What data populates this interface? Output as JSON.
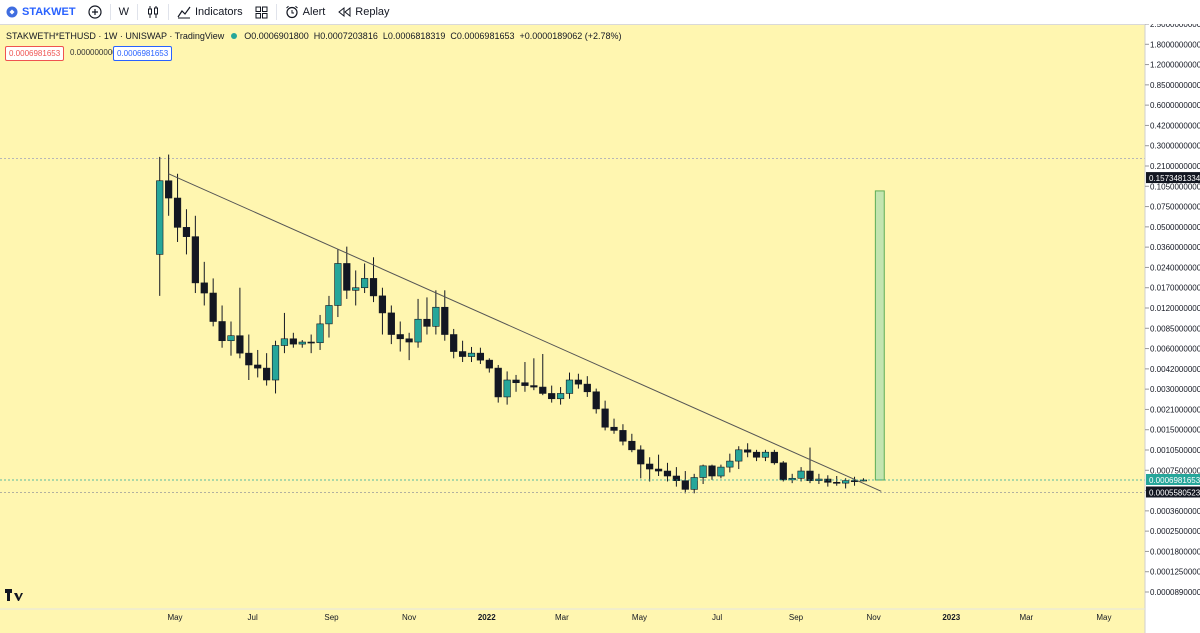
{
  "toolbar": {
    "symbol": "STAKWET",
    "interval": "W",
    "indicators": "Indicators",
    "alert": "Alert",
    "replay": "Replay"
  },
  "legend": {
    "title": "STAKWETH*ETHUSD · 1W · UNISWAP · TradingView",
    "open": "O0.0006901800",
    "high": "H0.0007203816",
    "low": "L0.0006818319",
    "close": "C0.0006981653",
    "change": "+0.0000189062 (+2.78%)"
  },
  "price_pills": {
    "sell": "0.0006981653",
    "spread": "0.0000000000",
    "buy": "0.0006981653"
  },
  "chart_data": {
    "type": "candlestick",
    "scale": "log",
    "y_ticks": [
      "2.5000000000",
      "1.8000000000",
      "1.2000000000",
      "0.8500000000",
      "0.6000000000",
      "0.4200000000",
      "0.3000000000",
      "0.2100000000",
      "0.1050000000",
      "0.0750000000",
      "0.0500000000",
      "0.0360000000",
      "0.0240000000",
      "0.0170000000",
      "0.0120000000",
      "0.0085000000",
      "0.0060000000",
      "0.0042000000",
      "0.0030000000",
      "0.0021000000",
      "0.0015000000",
      "0.0010500000",
      "0.0007500000",
      "0.0004800000",
      "0.0003600000",
      "0.0002500000",
      "0.0001800000",
      "0.0001250000",
      "0.0000890000"
    ],
    "price_labels": [
      {
        "value": 0.1573481334,
        "text": "0.1573481334",
        "color": "#131722"
      },
      {
        "value": 0.0006981653,
        "text": "0.0006981653",
        "color": "#26a69a"
      },
      {
        "value": 0.0005580523,
        "text": "0.0005580523",
        "color": "#131722"
      }
    ],
    "x_ticks": [
      {
        "date": "2021-05-01",
        "text": "May"
      },
      {
        "date": "2021-07-01",
        "text": "Jul"
      },
      {
        "date": "2021-09-01",
        "text": "Sep"
      },
      {
        "date": "2021-11-01",
        "text": "Nov"
      },
      {
        "date": "2022-01-01",
        "text": "2022"
      },
      {
        "date": "2022-03-01",
        "text": "Mar"
      },
      {
        "date": "2022-05-01",
        "text": "May"
      },
      {
        "date": "2022-07-01",
        "text": "Jul"
      },
      {
        "date": "2022-09-01",
        "text": "Sep"
      },
      {
        "date": "2022-11-01",
        "text": "Nov"
      },
      {
        "date": "2023-01-01",
        "text": "2023"
      },
      {
        "date": "2023-03-01",
        "text": "Mar"
      },
      {
        "date": "2023-05-01",
        "text": "May"
      }
    ],
    "colors": {
      "up": "#26a69a",
      "down": "#131722",
      "trendline": "#555555",
      "target_box_fill": "#b9e3b0",
      "target_box_stroke": "#43a047"
    },
    "candles": [
      {
        "date": "2021-04-19",
        "o": 0.04,
        "h": 0.23,
        "l": 0.019,
        "c": 0.15
      },
      {
        "date": "2021-04-26",
        "o": 0.15,
        "h": 0.24,
        "l": 0.08,
        "c": 0.11
      },
      {
        "date": "2021-05-03",
        "o": 0.11,
        "h": 0.17,
        "l": 0.05,
        "c": 0.065
      },
      {
        "date": "2021-05-10",
        "o": 0.065,
        "h": 0.09,
        "l": 0.04,
        "c": 0.055
      },
      {
        "date": "2021-05-17",
        "o": 0.055,
        "h": 0.08,
        "l": 0.02,
        "c": 0.024
      },
      {
        "date": "2021-05-24",
        "o": 0.024,
        "h": 0.035,
        "l": 0.016,
        "c": 0.02
      },
      {
        "date": "2021-05-31",
        "o": 0.02,
        "h": 0.026,
        "l": 0.011,
        "c": 0.012
      },
      {
        "date": "2021-06-07",
        "o": 0.012,
        "h": 0.016,
        "l": 0.0075,
        "c": 0.0085
      },
      {
        "date": "2021-06-14",
        "o": 0.0085,
        "h": 0.012,
        "l": 0.0065,
        "c": 0.0093
      },
      {
        "date": "2021-06-21",
        "o": 0.0093,
        "h": 0.022,
        "l": 0.0062,
        "c": 0.0068
      },
      {
        "date": "2021-06-28",
        "o": 0.0068,
        "h": 0.0095,
        "l": 0.0042,
        "c": 0.0055
      },
      {
        "date": "2021-07-05",
        "o": 0.0055,
        "h": 0.0072,
        "l": 0.0044,
        "c": 0.0052
      },
      {
        "date": "2021-07-12",
        "o": 0.0052,
        "h": 0.0068,
        "l": 0.0038,
        "c": 0.0042
      },
      {
        "date": "2021-07-19",
        "o": 0.0042,
        "h": 0.0085,
        "l": 0.0033,
        "c": 0.0078
      },
      {
        "date": "2021-07-26",
        "o": 0.0078,
        "h": 0.014,
        "l": 0.0068,
        "c": 0.0088
      },
      {
        "date": "2021-08-02",
        "o": 0.0088,
        "h": 0.0098,
        "l": 0.0075,
        "c": 0.008
      },
      {
        "date": "2021-08-09",
        "o": 0.008,
        "h": 0.0086,
        "l": 0.0075,
        "c": 0.0083
      },
      {
        "date": "2021-08-16",
        "o": 0.0083,
        "h": 0.0095,
        "l": 0.0068,
        "c": 0.0082
      },
      {
        "date": "2021-08-23",
        "o": 0.0082,
        "h": 0.0135,
        "l": 0.0072,
        "c": 0.0115
      },
      {
        "date": "2021-08-30",
        "o": 0.0115,
        "h": 0.019,
        "l": 0.009,
        "c": 0.016
      },
      {
        "date": "2021-09-06",
        "o": 0.016,
        "h": 0.044,
        "l": 0.013,
        "c": 0.034
      },
      {
        "date": "2021-09-13",
        "o": 0.034,
        "h": 0.046,
        "l": 0.018,
        "c": 0.021
      },
      {
        "date": "2021-09-20",
        "o": 0.021,
        "h": 0.03,
        "l": 0.016,
        "c": 0.022
      },
      {
        "date": "2021-09-27",
        "o": 0.022,
        "h": 0.034,
        "l": 0.02,
        "c": 0.026
      },
      {
        "date": "2021-10-04",
        "o": 0.026,
        "h": 0.038,
        "l": 0.017,
        "c": 0.019
      },
      {
        "date": "2021-10-11",
        "o": 0.019,
        "h": 0.022,
        "l": 0.0095,
        "c": 0.014
      },
      {
        "date": "2021-10-18",
        "o": 0.014,
        "h": 0.016,
        "l": 0.008,
        "c": 0.0095
      },
      {
        "date": "2021-10-25",
        "o": 0.0095,
        "h": 0.012,
        "l": 0.007,
        "c": 0.0088
      },
      {
        "date": "2021-11-01",
        "o": 0.0088,
        "h": 0.0098,
        "l": 0.006,
        "c": 0.0083
      },
      {
        "date": "2021-11-08",
        "o": 0.0083,
        "h": 0.018,
        "l": 0.0075,
        "c": 0.0125
      },
      {
        "date": "2021-11-15",
        "o": 0.0125,
        "h": 0.0185,
        "l": 0.0095,
        "c": 0.011
      },
      {
        "date": "2021-11-22",
        "o": 0.011,
        "h": 0.021,
        "l": 0.0095,
        "c": 0.0155
      },
      {
        "date": "2021-11-29",
        "o": 0.0155,
        "h": 0.021,
        "l": 0.0085,
        "c": 0.0095
      },
      {
        "date": "2021-12-06",
        "o": 0.0095,
        "h": 0.0105,
        "l": 0.0062,
        "c": 0.007
      },
      {
        "date": "2021-12-13",
        "o": 0.007,
        "h": 0.0085,
        "l": 0.0058,
        "c": 0.0064
      },
      {
        "date": "2021-12-20",
        "o": 0.0064,
        "h": 0.0076,
        "l": 0.0058,
        "c": 0.0068
      },
      {
        "date": "2021-12-27",
        "o": 0.0068,
        "h": 0.0075,
        "l": 0.0056,
        "c": 0.006
      },
      {
        "date": "2022-01-03",
        "o": 0.006,
        "h": 0.0062,
        "l": 0.0048,
        "c": 0.0052
      },
      {
        "date": "2022-01-10",
        "o": 0.0052,
        "h": 0.0055,
        "l": 0.0028,
        "c": 0.0031
      },
      {
        "date": "2022-01-17",
        "o": 0.0031,
        "h": 0.0049,
        "l": 0.0027,
        "c": 0.0042
      },
      {
        "date": "2022-01-24",
        "o": 0.0042,
        "h": 0.0046,
        "l": 0.0034,
        "c": 0.004
      },
      {
        "date": "2022-01-31",
        "o": 0.004,
        "h": 0.0058,
        "l": 0.0034,
        "c": 0.0038
      },
      {
        "date": "2022-02-07",
        "o": 0.0038,
        "h": 0.0062,
        "l": 0.0035,
        "c": 0.0037
      },
      {
        "date": "2022-02-14",
        "o": 0.0037,
        "h": 0.0067,
        "l": 0.0032,
        "c": 0.0033
      },
      {
        "date": "2022-02-21",
        "o": 0.0033,
        "h": 0.0038,
        "l": 0.0028,
        "c": 0.003
      },
      {
        "date": "2022-02-28",
        "o": 0.003,
        "h": 0.0037,
        "l": 0.0027,
        "c": 0.0033
      },
      {
        "date": "2022-03-07",
        "o": 0.0033,
        "h": 0.0048,
        "l": 0.003,
        "c": 0.0042
      },
      {
        "date": "2022-03-14",
        "o": 0.0042,
        "h": 0.0047,
        "l": 0.0036,
        "c": 0.0039
      },
      {
        "date": "2022-03-21",
        "o": 0.0039,
        "h": 0.0045,
        "l": 0.0031,
        "c": 0.0034
      },
      {
        "date": "2022-03-28",
        "o": 0.0034,
        "h": 0.0036,
        "l": 0.0023,
        "c": 0.0025
      },
      {
        "date": "2022-04-04",
        "o": 0.0025,
        "h": 0.0029,
        "l": 0.0017,
        "c": 0.0018
      },
      {
        "date": "2022-04-11",
        "o": 0.0018,
        "h": 0.0021,
        "l": 0.0016,
        "c": 0.0017
      },
      {
        "date": "2022-04-18",
        "o": 0.0017,
        "h": 0.0019,
        "l": 0.0013,
        "c": 0.0014
      },
      {
        "date": "2022-04-25",
        "o": 0.0014,
        "h": 0.0016,
        "l": 0.00115,
        "c": 0.0012
      },
      {
        "date": "2022-05-02",
        "o": 0.0012,
        "h": 0.0013,
        "l": 0.00072,
        "c": 0.00093
      },
      {
        "date": "2022-05-09",
        "o": 0.00093,
        "h": 0.00105,
        "l": 0.00068,
        "c": 0.00085
      },
      {
        "date": "2022-05-16",
        "o": 0.00085,
        "h": 0.0011,
        "l": 0.00075,
        "c": 0.00082
      },
      {
        "date": "2022-05-23",
        "o": 0.00082,
        "h": 0.00095,
        "l": 0.00068,
        "c": 0.00075
      },
      {
        "date": "2022-05-30",
        "o": 0.00075,
        "h": 0.00088,
        "l": 0.00062,
        "c": 0.00069
      },
      {
        "date": "2022-06-06",
        "o": 0.00069,
        "h": 0.00082,
        "l": 0.00055,
        "c": 0.00059
      },
      {
        "date": "2022-06-13",
        "o": 0.00059,
        "h": 0.00078,
        "l": 0.00055,
        "c": 0.00073
      },
      {
        "date": "2022-06-20",
        "o": 0.00073,
        "h": 0.00092,
        "l": 0.00065,
        "c": 0.0009
      },
      {
        "date": "2022-06-27",
        "o": 0.0009,
        "h": 0.00092,
        "l": 0.0007,
        "c": 0.00075
      },
      {
        "date": "2022-07-04",
        "o": 0.00075,
        "h": 0.00092,
        "l": 0.00072,
        "c": 0.00088
      },
      {
        "date": "2022-07-11",
        "o": 0.00088,
        "h": 0.00112,
        "l": 0.0008,
        "c": 0.00098
      },
      {
        "date": "2022-07-18",
        "o": 0.00098,
        "h": 0.00128,
        "l": 0.00085,
        "c": 0.0012
      },
      {
        "date": "2022-07-25",
        "o": 0.0012,
        "h": 0.00135,
        "l": 0.00105,
        "c": 0.00115
      },
      {
        "date": "2022-08-01",
        "o": 0.00115,
        "h": 0.0012,
        "l": 0.00098,
        "c": 0.00105
      },
      {
        "date": "2022-08-08",
        "o": 0.00105,
        "h": 0.0012,
        "l": 0.00098,
        "c": 0.00115
      },
      {
        "date": "2022-08-15",
        "o": 0.00115,
        "h": 0.0012,
        "l": 0.00092,
        "c": 0.00095
      },
      {
        "date": "2022-08-22",
        "o": 0.00095,
        "h": 0.00098,
        "l": 0.00068,
        "c": 0.0007
      },
      {
        "date": "2022-08-29",
        "o": 0.0007,
        "h": 0.00078,
        "l": 0.00066,
        "c": 0.00072
      },
      {
        "date": "2022-09-05",
        "o": 0.00072,
        "h": 0.00088,
        "l": 0.00068,
        "c": 0.00082
      },
      {
        "date": "2022-09-12",
        "o": 0.00082,
        "h": 0.00125,
        "l": 0.00066,
        "c": 0.00069
      },
      {
        "date": "2022-09-19",
        "o": 0.00069,
        "h": 0.00078,
        "l": 0.00065,
        "c": 0.00071
      },
      {
        "date": "2022-09-26",
        "o": 0.00071,
        "h": 0.00076,
        "l": 0.00062,
        "c": 0.00067
      },
      {
        "date": "2022-10-03",
        "o": 0.00067,
        "h": 0.00075,
        "l": 0.00063,
        "c": 0.00066
      },
      {
        "date": "2022-10-10",
        "o": 0.00066,
        "h": 0.00072,
        "l": 0.0006,
        "c": 0.00069
      },
      {
        "date": "2022-10-17",
        "o": 0.00069,
        "h": 0.00074,
        "l": 0.00063,
        "c": 0.00068
      },
      {
        "date": "2022-10-24",
        "o": 0.00069018,
        "h": 0.00072038,
        "l": 0.00068183,
        "c": 0.00069817
      }
    ],
    "trendline": [
      {
        "date": "2021-04-26",
        "value": 0.17
      },
      {
        "date": "2022-11-07",
        "value": 0.00057
      }
    ],
    "target_box": {
      "date_start": "2022-10-31",
      "date_end": "2022-11-07",
      "low": 0.00069817,
      "high": 0.125
    }
  }
}
